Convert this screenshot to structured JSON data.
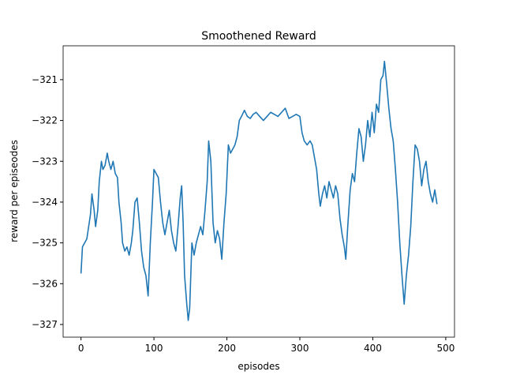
{
  "chart_data": {
    "type": "line",
    "title": "Smoothened Reward",
    "x_label": "episodes",
    "y_label": "reward per episeodes",
    "xlim": [
      -24.5,
      512
    ],
    "ylim": [
      -327.31,
      -320.17
    ],
    "xticks": [
      0,
      100,
      200,
      300,
      400,
      500
    ],
    "yticks": [
      {
        "value": -321,
        "label": "−321"
      },
      {
        "value": -322,
        "label": "−322"
      },
      {
        "value": -323,
        "label": "−323"
      },
      {
        "value": -324,
        "label": "−324"
      },
      {
        "value": -325,
        "label": "−325"
      },
      {
        "value": -326,
        "label": "−326"
      },
      {
        "value": -327,
        "label": "−327"
      }
    ],
    "grid": false,
    "series": [
      {
        "color": "#1f77b4",
        "x": [
          0,
          2,
          8,
          13,
          15,
          18,
          20,
          23,
          25,
          28,
          30,
          33,
          36,
          38,
          41,
          44,
          47,
          50,
          52,
          55,
          57,
          60,
          63,
          66,
          69,
          71,
          74,
          77,
          80,
          83,
          86,
          89,
          92,
          95,
          98,
          100,
          103,
          106,
          109,
          112,
          115,
          118,
          121,
          124,
          127,
          130,
          133,
          136,
          138,
          140,
          142,
          145,
          147,
          149,
          152,
          155,
          158,
          161,
          164,
          167,
          170,
          173,
          175,
          178,
          181,
          184,
          187,
          190,
          193,
          196,
          199,
          202,
          205,
          208,
          211,
          214,
          217,
          220,
          224,
          228,
          232,
          236,
          240,
          245,
          250,
          255,
          260,
          265,
          270,
          275,
          280,
          285,
          290,
          295,
          300,
          303,
          306,
          310,
          314,
          317,
          320,
          323,
          326,
          328,
          331,
          334,
          337,
          340,
          343,
          346,
          349,
          352,
          355,
          358,
          361,
          363,
          366,
          369,
          372,
          375,
          378,
          381,
          384,
          387,
          390,
          393,
          396,
          399,
          402,
          405,
          408,
          411,
          414,
          416,
          419,
          422,
          425,
          428,
          431,
          434,
          437,
          440,
          443,
          446,
          449,
          452,
          455,
          458,
          461,
          464,
          467,
          470,
          473,
          476,
          479,
          482,
          485,
          488
        ],
        "values": [
          -325.75,
          -325.1,
          -324.9,
          -324.3,
          -323.8,
          -324.2,
          -324.6,
          -324.2,
          -323.5,
          -323.0,
          -323.2,
          -323.1,
          -322.8,
          -323.0,
          -323.2,
          -323.0,
          -323.3,
          -323.4,
          -324.0,
          -324.5,
          -325.0,
          -325.2,
          -325.1,
          -325.3,
          -325.0,
          -324.7,
          -324.0,
          -323.9,
          -324.5,
          -325.2,
          -325.6,
          -325.8,
          -326.3,
          -325.0,
          -324.0,
          -323.2,
          -323.3,
          -323.4,
          -324.0,
          -324.5,
          -324.8,
          -324.5,
          -324.2,
          -324.7,
          -325.0,
          -325.2,
          -324.6,
          -323.9,
          -323.6,
          -324.5,
          -325.8,
          -326.5,
          -326.9,
          -326.6,
          -325.0,
          -325.3,
          -325.0,
          -324.8,
          -324.6,
          -324.8,
          -324.2,
          -323.5,
          -322.5,
          -323.0,
          -324.5,
          -325.0,
          -324.7,
          -324.9,
          -325.4,
          -324.5,
          -323.8,
          -322.6,
          -322.8,
          -322.7,
          -322.6,
          -322.4,
          -322.0,
          -321.9,
          -321.75,
          -321.9,
          -321.95,
          -321.85,
          -321.8,
          -321.9,
          -322.0,
          -321.9,
          -321.8,
          -321.85,
          -321.9,
          -321.8,
          -321.7,
          -321.95,
          -321.9,
          -321.85,
          -321.9,
          -322.3,
          -322.5,
          -322.6,
          -322.5,
          -322.6,
          -322.9,
          -323.2,
          -323.8,
          -324.1,
          -323.8,
          -323.6,
          -323.9,
          -323.5,
          -323.7,
          -323.9,
          -323.6,
          -323.8,
          -324.4,
          -324.8,
          -325.1,
          -325.4,
          -324.5,
          -323.7,
          -323.3,
          -323.5,
          -322.8,
          -322.2,
          -322.4,
          -323.0,
          -322.6,
          -322.0,
          -322.4,
          -321.8,
          -322.3,
          -321.6,
          -321.8,
          -321.0,
          -320.9,
          -320.55,
          -321.1,
          -321.7,
          -322.2,
          -322.5,
          -323.2,
          -324.0,
          -325.0,
          -325.8,
          -326.5,
          -325.8,
          -325.3,
          -324.6,
          -323.5,
          -322.6,
          -322.7,
          -323.0,
          -323.6,
          -323.2,
          -323.0,
          -323.5,
          -323.8,
          -324.0,
          -323.7,
          -324.05
        ]
      }
    ]
  }
}
